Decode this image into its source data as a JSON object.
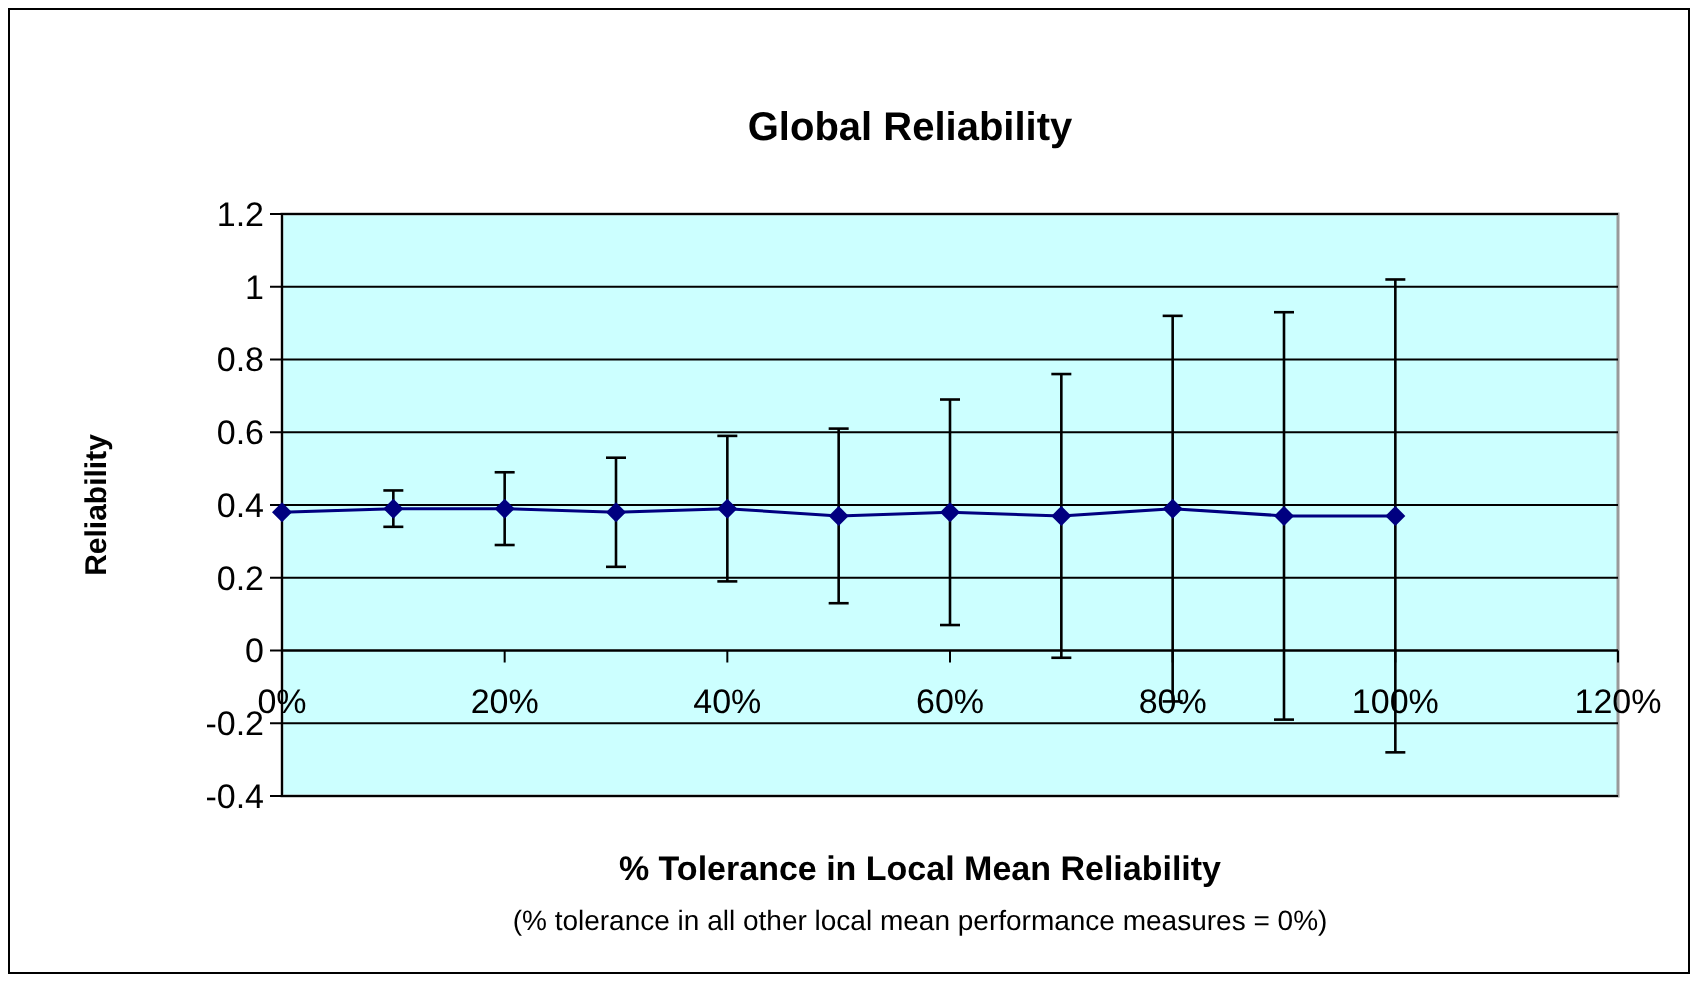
{
  "chart_data": {
    "type": "line",
    "title": "Global Reliability",
    "xlabel": "% Tolerance in Local Mean Reliability",
    "ylabel": "Reliability",
    "annotations": [
      "(% tolerance in all other local mean performance measures = 0%)"
    ],
    "x": [
      0,
      10,
      20,
      30,
      40,
      50,
      60,
      70,
      80,
      90,
      100
    ],
    "series": [
      {
        "color": "#000080",
        "values": [
          0.38,
          0.39,
          0.39,
          0.38,
          0.39,
          0.37,
          0.38,
          0.37,
          0.39,
          0.37,
          0.37
        ],
        "errors": [
          null,
          0.05,
          0.1,
          0.15,
          0.2,
          0.24,
          0.31,
          0.39,
          0.53,
          0.56,
          0.65
        ]
      }
    ],
    "xlim": [
      0,
      120
    ],
    "xticks": [
      {
        "value": 0,
        "label": "0%"
      },
      {
        "value": 20,
        "label": "20%"
      },
      {
        "value": 40,
        "label": "40%"
      },
      {
        "value": 60,
        "label": "60%"
      },
      {
        "value": 80,
        "label": "80%"
      },
      {
        "value": 100,
        "label": "100%"
      },
      {
        "value": 120,
        "label": "120%"
      }
    ],
    "ylim": [
      -0.4,
      1.2
    ],
    "yticks": [
      -0.4,
      -0.2,
      0,
      0.2,
      0.4,
      0.6,
      0.8,
      1,
      1.2
    ],
    "grid": "y",
    "marker": "diamond",
    "line_style": "solid"
  }
}
